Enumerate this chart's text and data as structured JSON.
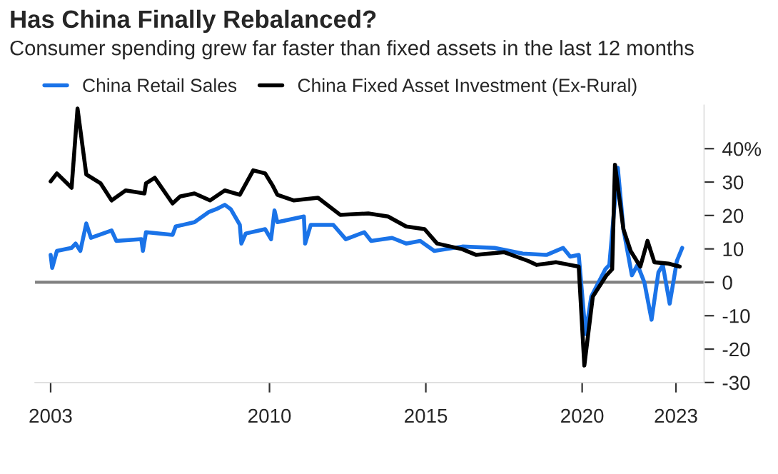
{
  "chart_data": {
    "type": "line",
    "title": "Has China Finally Rebalanced?",
    "subtitle": "Consumer spending grew far faster than fixed assets in the last 12 months",
    "series": [
      {
        "name": "China Retail Sales",
        "color": "#1a73e8",
        "x": [
          2003.0,
          2003.05,
          2003.2,
          2003.67,
          2003.8,
          2003.95,
          2004.14,
          2004.29,
          2004.95,
          2005.1,
          2005.9,
          2005.95,
          2006.05,
          2006.9,
          2007.0,
          2007.6,
          2008.05,
          2008.3,
          2008.57,
          2008.76,
          2009.05,
          2009.1,
          2009.24,
          2009.86,
          2010.05,
          2010.16,
          2010.25,
          2011.1,
          2011.14,
          2011.32,
          2012.04,
          2012.44,
          2013.03,
          2013.25,
          2013.92,
          2014.37,
          2014.82,
          2015.27,
          2016.17,
          2017.2,
          2018.1,
          2018.86,
          2019.39,
          2019.62,
          2019.89,
          2020.11,
          2020.29,
          2020.74,
          2020.87,
          2021.14,
          2021.32,
          2021.59,
          2021.77,
          2021.99,
          2022.22,
          2022.44,
          2022.58,
          2022.8,
          2023.03,
          2023.2
        ],
        "values": [
          8.2,
          4.3,
          9.4,
          10.3,
          11.6,
          9.4,
          17.6,
          13.3,
          15.5,
          12.4,
          12.9,
          9.4,
          15.0,
          14.2,
          16.7,
          18.0,
          21.0,
          21.9,
          23.2,
          21.9,
          17.2,
          11.6,
          14.6,
          15.9,
          12.9,
          21.5,
          18.0,
          19.7,
          11.6,
          17.2,
          17.2,
          12.9,
          15.0,
          12.4,
          13.3,
          11.6,
          12.4,
          9.4,
          10.7,
          10.3,
          8.6,
          8.2,
          10.3,
          7.7,
          8.2,
          -15.5,
          -4.3,
          3.9,
          5.2,
          34.3,
          15.9,
          2.1,
          5.2,
          0,
          -11.2,
          3.0,
          5.2,
          -6.4,
          6.4,
          10.3
        ]
      },
      {
        "name": "China Fixed Asset Investment (Ex-Rural)",
        "color": "#000000",
        "x": [
          2003.0,
          2003.2,
          2003.67,
          2003.86,
          2004.14,
          2004.6,
          2004.95,
          2005.4,
          2006.0,
          2006.05,
          2006.33,
          2006.9,
          2007.14,
          2007.6,
          2008.1,
          2008.57,
          2009.05,
          2009.48,
          2009.86,
          2010.11,
          2010.25,
          2010.78,
          2011.55,
          2012.26,
          2013.16,
          2013.79,
          2014.37,
          2014.96,
          2015.36,
          2016.17,
          2016.61,
          2017.51,
          2018.27,
          2018.54,
          2019.17,
          2019.89,
          2020.07,
          2020.34,
          2020.78,
          2020.96,
          2021.05,
          2021.32,
          2021.55,
          2021.86,
          2022.09,
          2022.31,
          2022.76,
          2023.12
        ],
        "values": [
          30.2,
          32.6,
          28.3,
          52,
          32.3,
          29.6,
          24.5,
          27.5,
          26.6,
          29.6,
          31.3,
          23.6,
          25.7,
          26.6,
          24.5,
          27.5,
          26.2,
          33.5,
          32.6,
          28.8,
          26.2,
          24.5,
          25.3,
          20.2,
          20.6,
          19.7,
          16.7,
          15.9,
          11.6,
          9.9,
          8.2,
          9.0,
          6.4,
          5.2,
          6.0,
          4.7,
          -24.9,
          -4.3,
          2.1,
          3.9,
          35.2,
          15.9,
          9.4,
          4.7,
          12.4,
          6.0,
          5.6,
          4.7
        ]
      }
    ],
    "xlim": [
      2002.5,
      2023.9
    ],
    "xticks": [
      2003,
      2010,
      2015,
      2020,
      2023
    ],
    "ylim": [
      -30,
      53
    ],
    "yticks": [
      -30,
      -20,
      -10,
      0,
      10,
      20,
      30,
      {
        "value": 40,
        "label": "40%"
      }
    ],
    "ref_lines": [
      {
        "axis": "y",
        "value": 0,
        "color": "#808080"
      }
    ],
    "legend": "top left",
    "grid": false,
    "line_style": "solid"
  }
}
